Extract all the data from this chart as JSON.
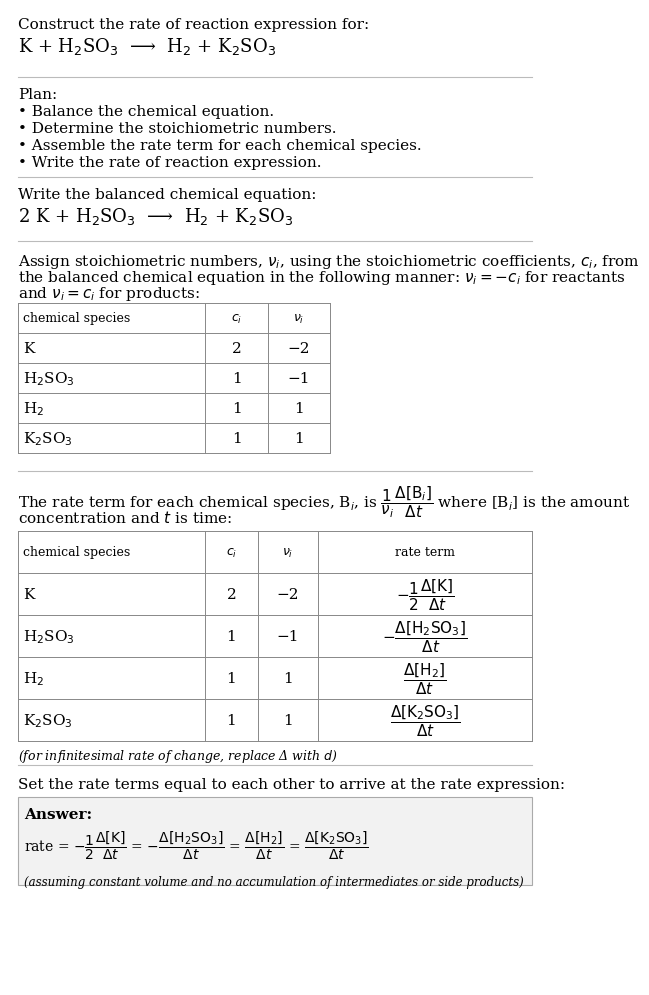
{
  "bg_color": "#ffffff",
  "text_color": "#000000",
  "title_line1": "Construct the rate of reaction expression for:",
  "reaction_unbalanced": "K + H$_2$SO$_3$  ⟶  H$_2$ + K$_2$SO$_3$",
  "plan_title": "Plan:",
  "plan_items": [
    "• Balance the chemical equation.",
    "• Determine the stoichiometric numbers.",
    "• Assemble the rate term for each chemical species.",
    "• Write the rate of reaction expression."
  ],
  "balanced_label": "Write the balanced chemical equation:",
  "reaction_balanced": "2 K + H$_2$SO$_3$  ⟶  H$_2$ + K$_2$SO$_3$",
  "stoich_line1": "Assign stoichiometric numbers, $\\nu_i$, using the stoichiometric coefficients, $c_i$, from",
  "stoich_line2": "the balanced chemical equation in the following manner: $\\nu_i = -c_i$ for reactants",
  "stoich_line3": "and $\\nu_i = c_i$ for products:",
  "table1_headers": [
    "chemical species",
    "$c_i$",
    "$\\nu_i$"
  ],
  "table1_data": [
    [
      "K",
      "2",
      "−2"
    ],
    [
      "H$_2$SO$_3$",
      "1",
      "−1"
    ],
    [
      "H$_2$",
      "1",
      "1"
    ],
    [
      "K$_2$SO$_3$",
      "1",
      "1"
    ]
  ],
  "rate_intro1": "The rate term for each chemical species, B$_i$, is $\\dfrac{1}{\\nu_i}\\dfrac{\\Delta[\\mathrm{B}_i]}{\\Delta t}$ where [B$_i$] is the amount",
  "rate_intro2": "concentration and $t$ is time:",
  "table2_headers": [
    "chemical species",
    "$c_i$",
    "$\\nu_i$",
    "rate term"
  ],
  "table2_data": [
    [
      "K",
      "2",
      "−2",
      "$-\\dfrac{1}{2}\\dfrac{\\Delta[\\mathrm{K}]}{\\Delta t}$"
    ],
    [
      "H$_2$SO$_3$",
      "1",
      "−1",
      "$-\\dfrac{\\Delta[\\mathrm{H_2SO_3}]}{\\Delta t}$"
    ],
    [
      "H$_2$",
      "1",
      "1",
      "$\\dfrac{\\Delta[\\mathrm{H_2}]}{\\Delta t}$"
    ],
    [
      "K$_2$SO$_3$",
      "1",
      "1",
      "$\\dfrac{\\Delta[\\mathrm{K_2SO_3}]}{\\Delta t}$"
    ]
  ],
  "infinitesimal_note": "(for infinitesimal rate of change, replace Δ with $d$)",
  "set_equal_label": "Set the rate terms equal to each other to arrive at the rate expression:",
  "answer_label": "Answer:",
  "assuming_note": "(assuming constant volume and no accumulation of intermediates or side products)"
}
